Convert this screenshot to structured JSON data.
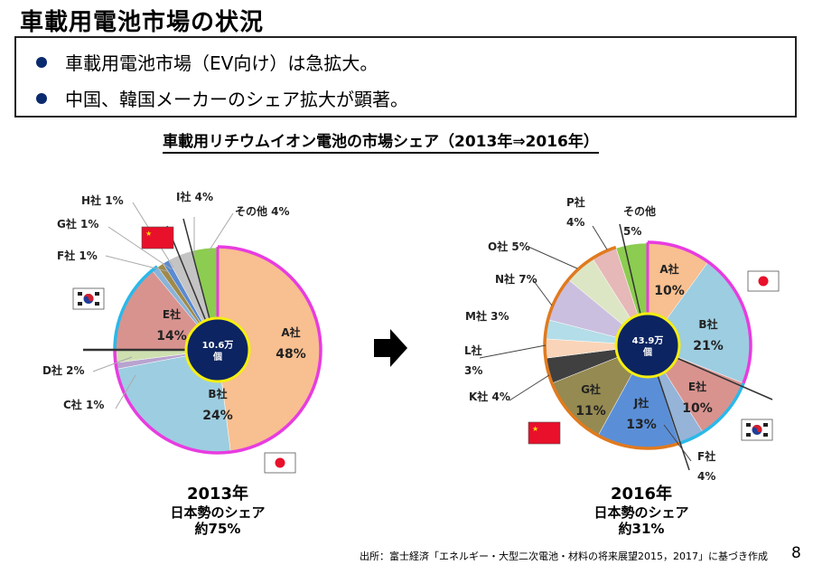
{
  "header": {
    "title": "車載用電池市場の状況",
    "bullets": [
      "車載用電池市場（EV向け）は急拡大。",
      "中国、韓国メーカーのシェア拡大が顕著。"
    ]
  },
  "colors": {
    "japan_outline": "#e83ce0",
    "korea_outline": "#2ab8ea",
    "china_outline": "#e07a1e",
    "center_fill": "#0c2461",
    "center_ring": "#f5ef10",
    "bullet": "#0b2a6e"
  },
  "chart_data": [
    {
      "type": "pie",
      "title": "車載用リチウムイオン電池の市場シェア（2013年⇒2016年）",
      "year_label": "2013年",
      "center_label": [
        "10.6万",
        "個"
      ],
      "caption": [
        "日本勢のシェア",
        "約75%"
      ],
      "start": "12 o'clock, clockwise",
      "slices": [
        {
          "name": "A社",
          "value": 48,
          "label": "48%",
          "color": "#f8bf90",
          "group": "japan"
        },
        {
          "name": "B社",
          "value": 24,
          "label": "24%",
          "color": "#9dcde0",
          "group": "japan"
        },
        {
          "name": "C社",
          "value": 1,
          "label": "C社 1%",
          "color": "#b8a3cf",
          "group": "japan"
        },
        {
          "name": "D社",
          "value": 2,
          "label": "D社 2%",
          "color": "#cfe0b0",
          "group": "japan"
        },
        {
          "name": "E社",
          "value": 14,
          "label": "14%",
          "color": "#d8938f",
          "group": "korea"
        },
        {
          "name": "F社",
          "value": 1,
          "label": "F社 1%",
          "color": "#8ab3d8",
          "group": "korea"
        },
        {
          "name": "G社",
          "value": 1,
          "label": "G社 1%",
          "color": "#a08a4a",
          "group": "china"
        },
        {
          "name": "H社",
          "value": 1,
          "label": "H社 1%",
          "color": "#5a8ad0",
          "group": "china"
        },
        {
          "name": "I社",
          "value": 4,
          "label": "I社 4%",
          "color": "#c4c4c4",
          "group": "other"
        },
        {
          "name": "その他",
          "value": 4,
          "label": "その他 4%",
          "color": "#8ccc50",
          "group": "other"
        }
      ]
    },
    {
      "type": "pie",
      "year_label": "2016年",
      "center_label": [
        "43.9万",
        "個"
      ],
      "caption": [
        "日本勢のシェア",
        "約31%"
      ],
      "start": "12 o'clock, clockwise",
      "slices": [
        {
          "name": "A社",
          "value": 10,
          "label": "10%",
          "color": "#f8bf90",
          "group": "japan"
        },
        {
          "name": "B社",
          "value": 21,
          "label": "21%",
          "color": "#9dcde0",
          "group": "japan"
        },
        {
          "name": "E社",
          "value": 10,
          "label": "10%",
          "color": "#d8938f",
          "group": "korea"
        },
        {
          "name": "F社",
          "value": 4,
          "label": "4%",
          "color": "#95b4d8",
          "group": "korea"
        },
        {
          "name": "J社",
          "value": 13,
          "label": "13%",
          "color": "#5a8fd8",
          "group": "china"
        },
        {
          "name": "G社",
          "value": 11,
          "label": "11%",
          "color": "#958a52",
          "group": "china"
        },
        {
          "name": "K社",
          "value": 4,
          "label": "K社 4%",
          "color": "#404040",
          "group": "china"
        },
        {
          "name": "L社",
          "value": 3,
          "label": "3%",
          "color": "#fad4b8",
          "group": "china"
        },
        {
          "name": "M社",
          "value": 3,
          "label": "M社 3%",
          "color": "#b3dde8",
          "group": "china"
        },
        {
          "name": "N社",
          "value": 7,
          "label": "N社 7%",
          "color": "#cbbfe0",
          "group": "china"
        },
        {
          "name": "O社",
          "value": 5,
          "label": "O社 5%",
          "color": "#dde6c4",
          "group": "china"
        },
        {
          "name": "P社",
          "value": 4,
          "label": "4%",
          "color": "#e6b8b8",
          "group": "china"
        },
        {
          "name": "その他",
          "value": 5,
          "label": "5%",
          "color": "#8ccc50",
          "group": "other"
        }
      ]
    }
  ],
  "footer": {
    "source": "出所：富士経済「エネルギー・大型二次電池・材料の将来展望2015，2017」に基づき作成",
    "page_number": "8"
  }
}
